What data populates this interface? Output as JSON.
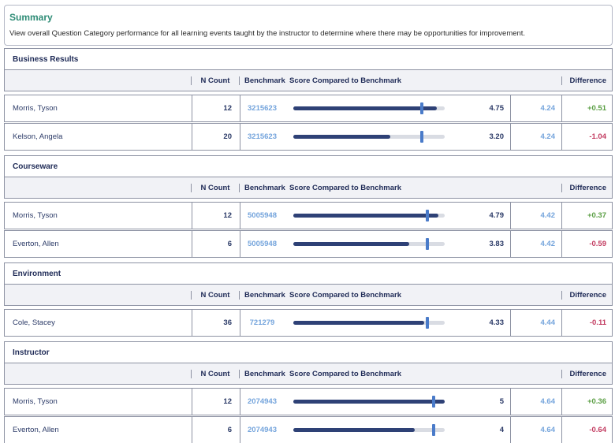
{
  "summary": {
    "title": "Summary",
    "description": "View overall Question Category performance for all learning events taught by the instructor to determine where there may be opportunities for improvement."
  },
  "header": {
    "n_count": "N Count",
    "benchmark": "Benchmark",
    "score_compared": "Score Compared to Benchmark",
    "difference": "Difference"
  },
  "scale_max": 5,
  "colors": {
    "accent_teal": "#2e8c76",
    "link_blue": "#74a4dc",
    "bar_dark": "#2e4176",
    "bar_tick": "#4a7bc9",
    "bar_track": "#d9dce3",
    "positive": "#5a9e43",
    "negative": "#c23b60"
  },
  "sections": [
    {
      "title": "Business Results",
      "rows": [
        {
          "name": "Morris, Tyson",
          "n_count": "12",
          "benchmark_id": "3215623",
          "score": 4.75,
          "score_label": "4.75",
          "benchmark": 4.24,
          "benchmark_label": "4.24",
          "difference": "+0.51",
          "diff_type": "positive"
        },
        {
          "name": "Kelson, Angela",
          "n_count": "20",
          "benchmark_id": "3215623",
          "score": 3.2,
          "score_label": "3.20",
          "benchmark": 4.24,
          "benchmark_label": "4.24",
          "difference": "-1.04",
          "diff_type": "negative"
        }
      ]
    },
    {
      "title": "Courseware",
      "rows": [
        {
          "name": "Morris, Tyson",
          "n_count": "12",
          "benchmark_id": "5005948",
          "score": 4.79,
          "score_label": "4.79",
          "benchmark": 4.42,
          "benchmark_label": "4.42",
          "difference": "+0.37",
          "diff_type": "positive"
        },
        {
          "name": "Everton, Allen",
          "n_count": "6",
          "benchmark_id": "5005948",
          "score": 3.83,
          "score_label": "3.83",
          "benchmark": 4.42,
          "benchmark_label": "4.42",
          "difference": "-0.59",
          "diff_type": "negative"
        }
      ]
    },
    {
      "title": "Environment",
      "rows": [
        {
          "name": "Cole, Stacey",
          "n_count": "36",
          "benchmark_id": "721279",
          "score": 4.33,
          "score_label": "4.33",
          "benchmark": 4.44,
          "benchmark_label": "4.44",
          "difference": "-0.11",
          "diff_type": "negative"
        }
      ]
    },
    {
      "title": "Instructor",
      "rows": [
        {
          "name": "Morris, Tyson",
          "n_count": "12",
          "benchmark_id": "2074943",
          "score": 5,
          "score_label": "5",
          "benchmark": 4.64,
          "benchmark_label": "4.64",
          "difference": "+0.36",
          "diff_type": "positive"
        },
        {
          "name": "Everton, Allen",
          "n_count": "6",
          "benchmark_id": "2074943",
          "score": 4,
          "score_label": "4",
          "benchmark": 4.64,
          "benchmark_label": "4.64",
          "difference": "-0.64",
          "diff_type": "negative"
        }
      ]
    }
  ]
}
